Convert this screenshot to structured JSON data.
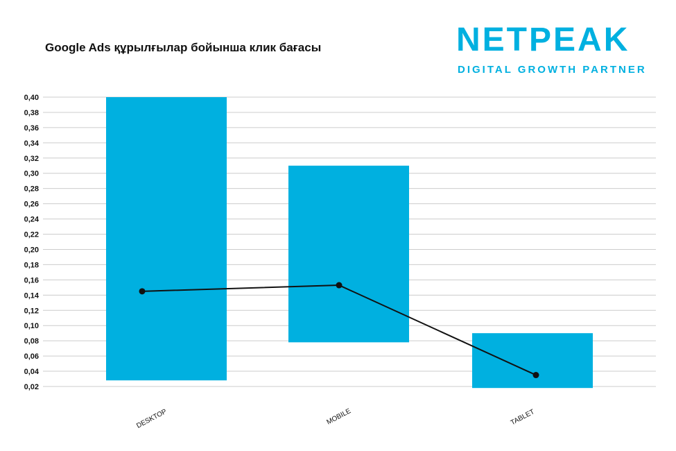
{
  "header": {
    "title": "Google Ads құрылғылар бойынша клик бағасы"
  },
  "logo": {
    "wordmark": "NETPEAK",
    "tagline": "DIGITAL GROWTH PARTNER",
    "color": "#00b0e0"
  },
  "chart_data": {
    "type": "bar",
    "subtype": "floating-range-with-line",
    "categories": [
      "DESKTOP",
      "MOBILE",
      "TABLET"
    ],
    "ranges": [
      {
        "low": 0.028,
        "high": 0.4
      },
      {
        "low": 0.078,
        "high": 0.31
      },
      {
        "low": 0.018,
        "high": 0.09
      }
    ],
    "line_values": [
      0.145,
      0.153,
      0.035
    ],
    "ylim": [
      0.02,
      0.4
    ],
    "yticks": [
      0.02,
      0.04,
      0.06,
      0.08,
      0.1,
      0.12,
      0.14,
      0.16,
      0.18,
      0.2,
      0.22,
      0.24,
      0.26,
      0.28,
      0.3,
      0.32,
      0.34,
      0.36,
      0.38,
      0.4
    ],
    "ytick_labels": [
      "0,02",
      "0,04",
      "0,06",
      "0,08",
      "0,10",
      "0,12",
      "0,14",
      "0,16",
      "0,18",
      "0,20",
      "0,22",
      "0,24",
      "0,26",
      "0,28",
      "0,30",
      "0,32",
      "0,34",
      "0,36",
      "0,38",
      "0,40"
    ],
    "grid": true,
    "bar_color": "#00b0e0",
    "line_color": "#111111",
    "xlabel_rotation": "slanted",
    "xlabel": "",
    "ylabel": ""
  }
}
